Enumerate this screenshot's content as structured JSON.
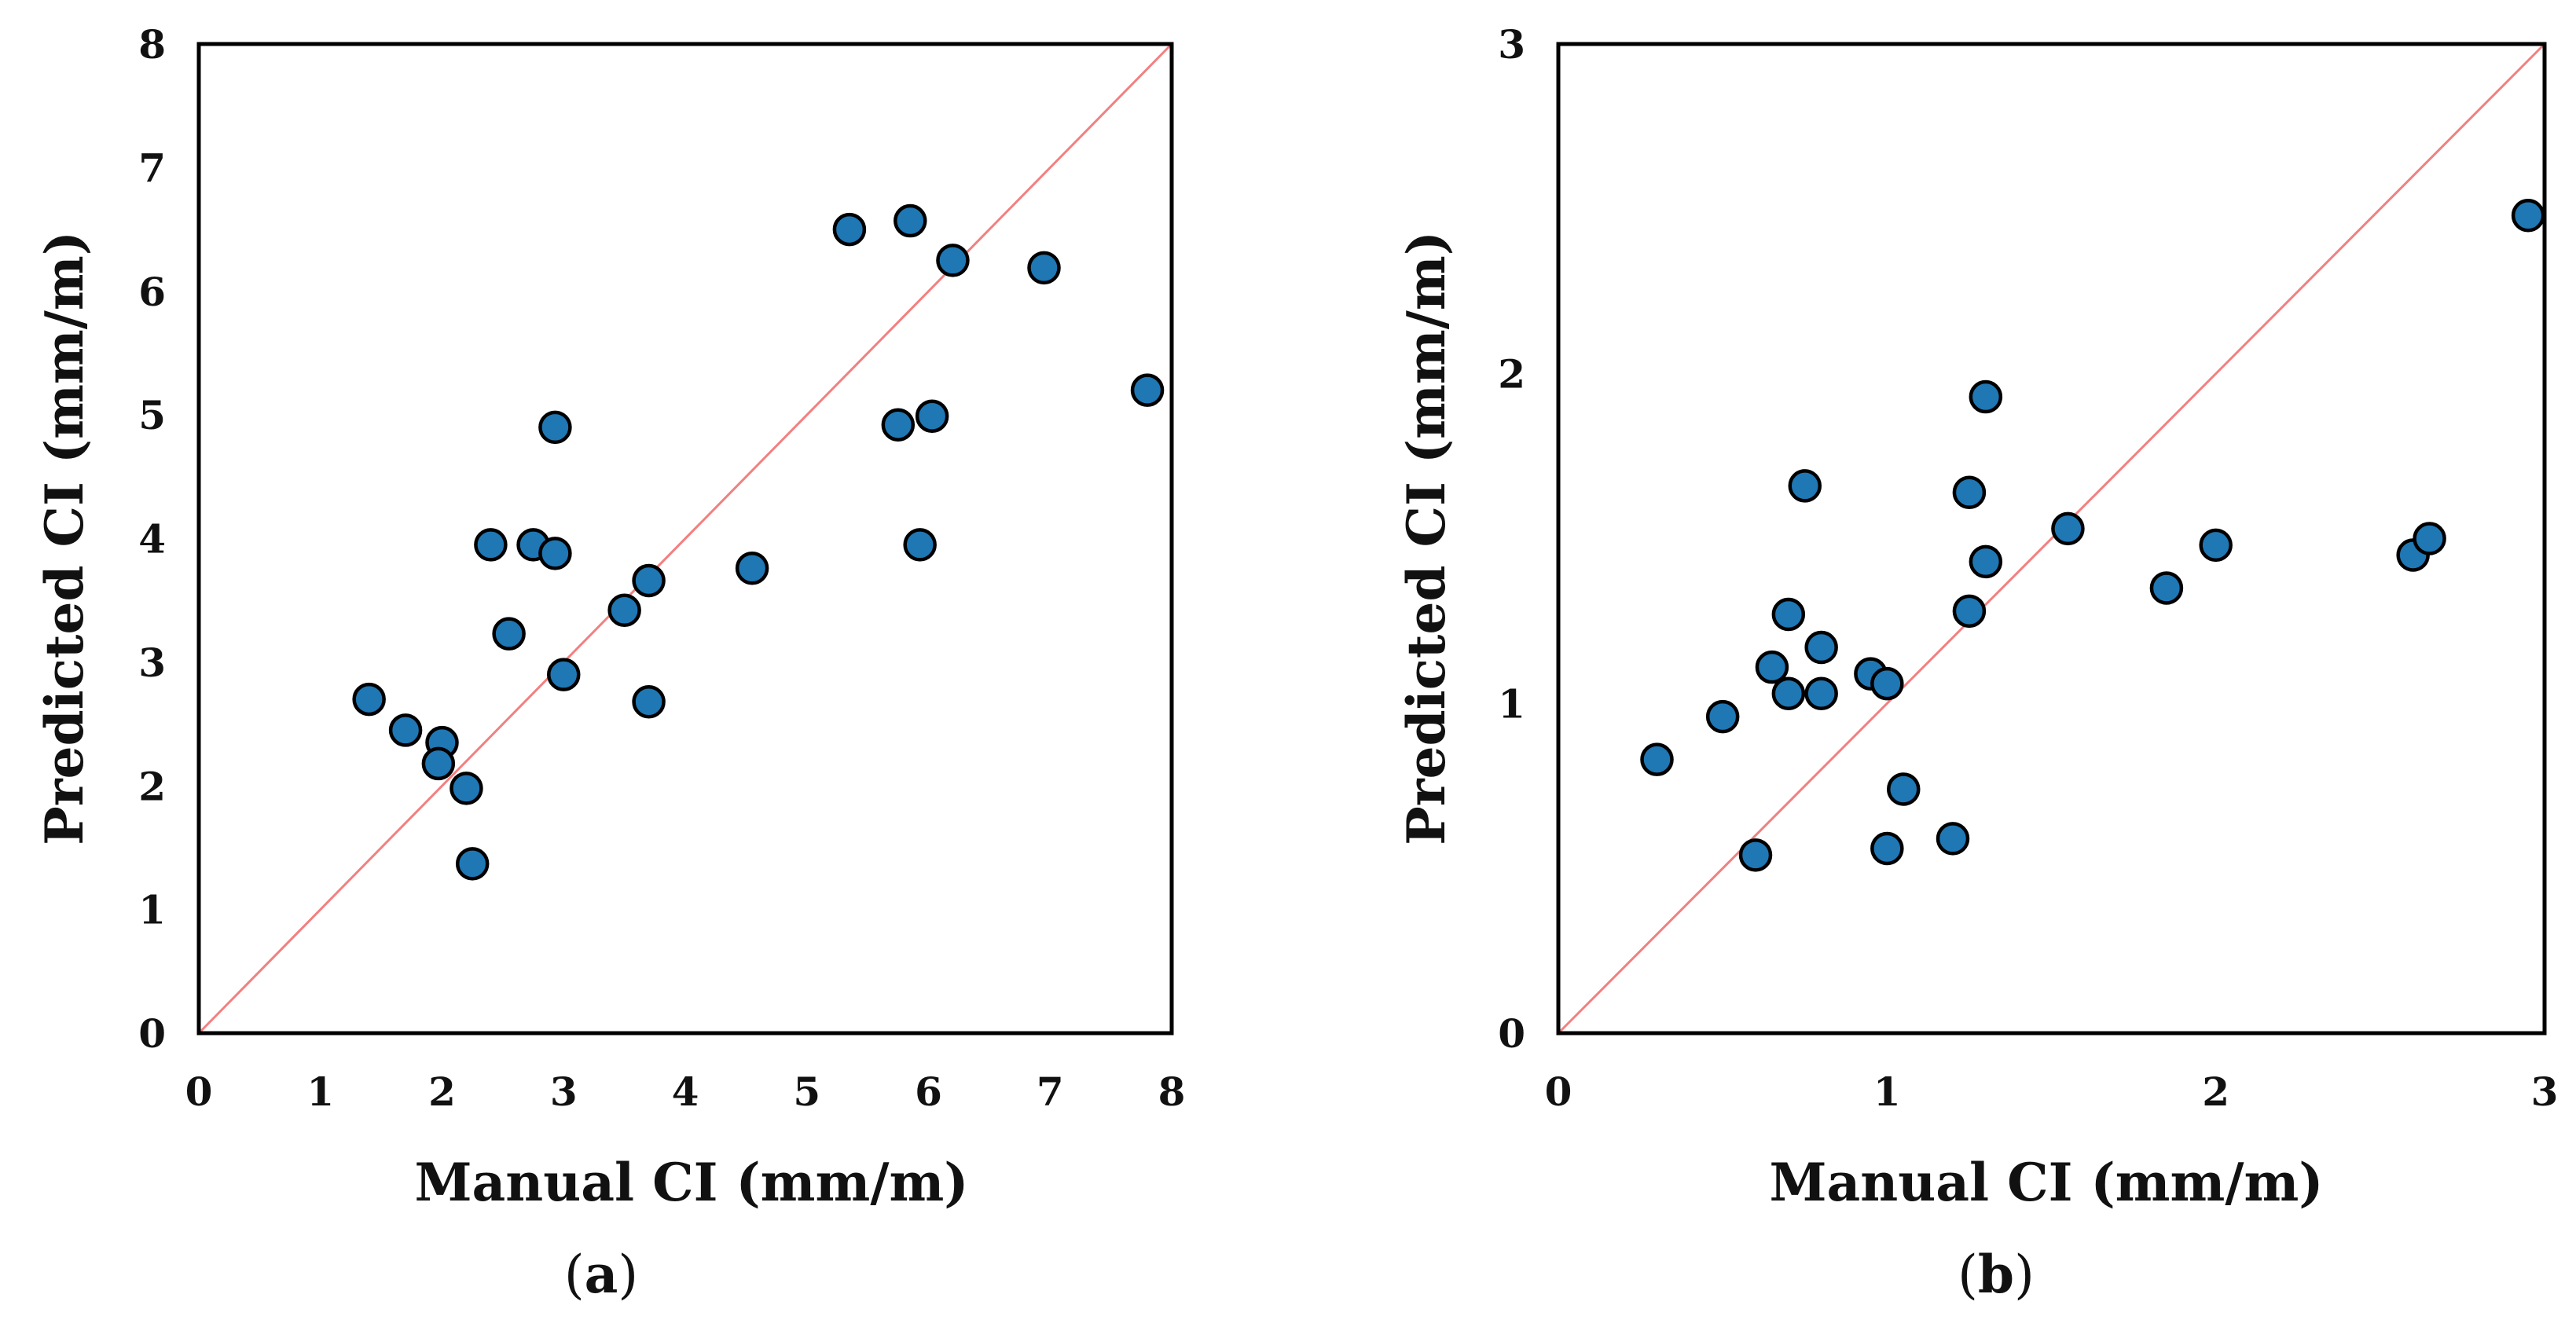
{
  "chart_data": [
    {
      "type": "scatter",
      "panel_label_pre": "(",
      "panel_label_letter": "a",
      "panel_label_post": ")",
      "xlabel": "Manual CI (mm/m)",
      "ylabel": "Predicted CI (mm/m)",
      "xlim": [
        0,
        8
      ],
      "ylim": [
        0,
        8
      ],
      "xticks": [
        "0",
        "1",
        "2",
        "3",
        "4",
        "5",
        "6",
        "7",
        "8"
      ],
      "yticks": [
        "0",
        "1",
        "2",
        "3",
        "4",
        "5",
        "6",
        "7",
        "8"
      ],
      "reference_line": "y = x",
      "marker_color": "#1f77b4",
      "line_color": "#f28080",
      "points": [
        {
          "x": 1.4,
          "y": 2.7
        },
        {
          "x": 1.7,
          "y": 2.45
        },
        {
          "x": 2.0,
          "y": 2.35
        },
        {
          "x": 1.97,
          "y": 2.18
        },
        {
          "x": 2.2,
          "y": 1.98
        },
        {
          "x": 2.25,
          "y": 1.37
        },
        {
          "x": 2.4,
          "y": 3.95
        },
        {
          "x": 2.55,
          "y": 3.23
        },
        {
          "x": 2.75,
          "y": 3.95
        },
        {
          "x": 2.93,
          "y": 3.88
        },
        {
          "x": 2.93,
          "y": 4.9
        },
        {
          "x": 3.0,
          "y": 2.9
        },
        {
          "x": 3.5,
          "y": 3.42
        },
        {
          "x": 3.7,
          "y": 3.66
        },
        {
          "x": 3.7,
          "y": 2.68
        },
        {
          "x": 4.55,
          "y": 3.76
        },
        {
          "x": 5.35,
          "y": 6.5
        },
        {
          "x": 5.75,
          "y": 4.92
        },
        {
          "x": 5.85,
          "y": 6.57
        },
        {
          "x": 5.93,
          "y": 3.95
        },
        {
          "x": 6.03,
          "y": 4.99
        },
        {
          "x": 6.2,
          "y": 6.25
        },
        {
          "x": 6.95,
          "y": 6.19
        },
        {
          "x": 7.8,
          "y": 5.2
        }
      ]
    },
    {
      "type": "scatter",
      "panel_label_pre": "(",
      "panel_label_letter": "b",
      "panel_label_post": ")",
      "xlabel": "Manual CI (mm/m)",
      "ylabel": "Predicted CI (mm/m)",
      "xlim": [
        0,
        3
      ],
      "ylim": [
        0,
        3
      ],
      "xticks": [
        "0",
        "1",
        "2",
        "3"
      ],
      "yticks": [
        "0",
        "1",
        "2",
        "3"
      ],
      "reference_line": "y = x",
      "marker_color": "#1f77b4",
      "line_color": "#f28080",
      "points": [
        {
          "x": 0.3,
          "y": 0.83
        },
        {
          "x": 0.5,
          "y": 0.96
        },
        {
          "x": 0.6,
          "y": 0.54
        },
        {
          "x": 0.65,
          "y": 1.11
        },
        {
          "x": 0.7,
          "y": 1.27
        },
        {
          "x": 0.7,
          "y": 1.03
        },
        {
          "x": 0.75,
          "y": 1.66
        },
        {
          "x": 0.8,
          "y": 1.17
        },
        {
          "x": 0.8,
          "y": 1.03
        },
        {
          "x": 0.95,
          "y": 1.09
        },
        {
          "x": 1.0,
          "y": 1.06
        },
        {
          "x": 1.0,
          "y": 0.56
        },
        {
          "x": 1.05,
          "y": 0.74
        },
        {
          "x": 1.2,
          "y": 0.59
        },
        {
          "x": 1.25,
          "y": 1.64
        },
        {
          "x": 1.25,
          "y": 1.28
        },
        {
          "x": 1.3,
          "y": 1.93
        },
        {
          "x": 1.3,
          "y": 1.43
        },
        {
          "x": 1.55,
          "y": 1.53
        },
        {
          "x": 1.85,
          "y": 1.35
        },
        {
          "x": 2.0,
          "y": 1.48
        },
        {
          "x": 2.6,
          "y": 1.45
        },
        {
          "x": 2.65,
          "y": 1.5
        },
        {
          "x": 2.95,
          "y": 2.48
        }
      ]
    }
  ]
}
